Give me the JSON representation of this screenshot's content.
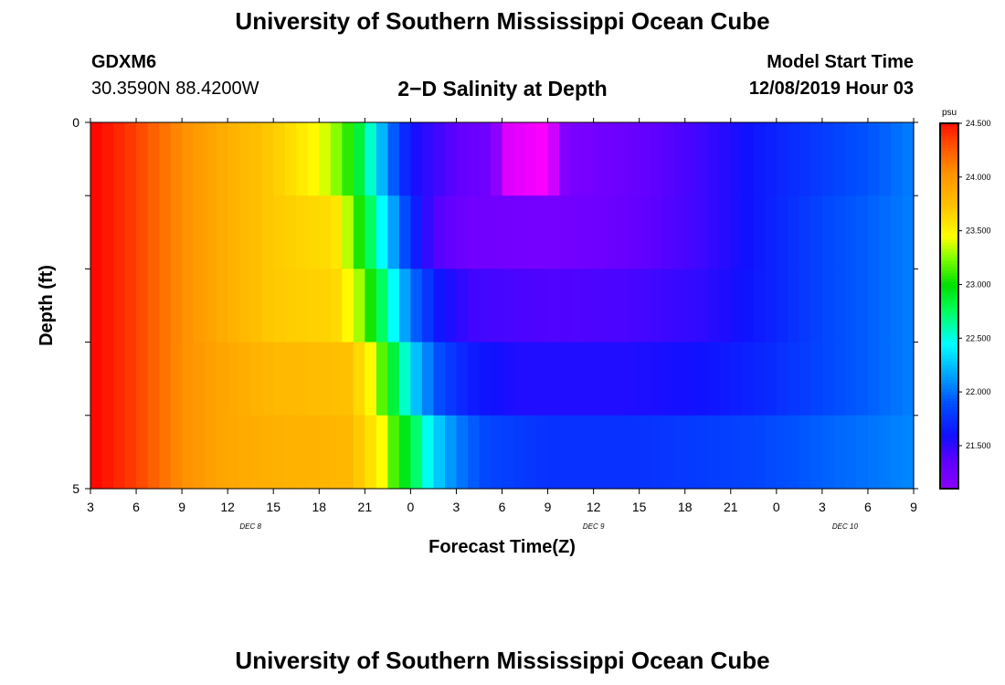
{
  "header": {
    "title": "University of Southern Mississippi Ocean Cube",
    "station": "GDXM6",
    "coordinates": "30.3590N 88.4200W",
    "subtitle": "2−D Salinity at Depth",
    "model_start_label": "Model Start Time",
    "model_start_value": "12/08/2019 Hour 03",
    "footer_title": "University of Southern Mississippi Ocean Cube"
  },
  "chart_data": {
    "type": "heatmap",
    "title": "2−D Salinity at Depth",
    "xlabel": "Forecast Time(Z)",
    "ylabel": "Depth (ft)",
    "x_tick_labels": [
      "3",
      "6",
      "9",
      "12",
      "15",
      "18",
      "21",
      "0",
      "3",
      "6",
      "9",
      "12",
      "15",
      "18",
      "21",
      "0",
      "3",
      "6",
      "9"
    ],
    "x_hours": [
      0,
      3,
      6,
      9,
      12,
      15,
      18,
      21,
      24,
      27,
      30,
      33,
      36,
      39,
      42,
      45,
      48,
      51,
      54
    ],
    "date_labels": [
      {
        "label": "DEC 8",
        "hour": 10.5
      },
      {
        "label": "DEC 9",
        "hour": 33
      },
      {
        "label": "DEC 10",
        "hour": 49.5
      }
    ],
    "y_tick_labels": [
      "0",
      "5"
    ],
    "ylim": [
      0,
      5
    ],
    "depth_levels": [
      "0-1",
      "1-2",
      "2-3",
      "3-4",
      "4-5"
    ],
    "colorbar": {
      "unit": "psu",
      "tick_labels": [
        "24.500",
        "24.000",
        "23.500",
        "23.000",
        "22.500",
        "22.000",
        "21.500"
      ],
      "tick_values": [
        24.5,
        24.0,
        23.5,
        23.0,
        22.5,
        22.0,
        21.5
      ],
      "range": [
        21.1,
        24.5
      ]
    },
    "grid": false,
    "rows": [
      {
        "depth": "0-1",
        "points": [
          [
            0,
            24.55
          ],
          [
            3,
            24.35
          ],
          [
            6,
            24.05
          ],
          [
            9,
            23.85
          ],
          [
            12,
            23.7
          ],
          [
            15,
            23.45
          ],
          [
            16.5,
            23.2
          ],
          [
            17.5,
            22.9
          ],
          [
            18.5,
            22.5
          ],
          [
            19.5,
            22.05
          ],
          [
            21,
            21.6
          ],
          [
            24,
            21.35
          ],
          [
            26,
            21.25
          ],
          [
            27,
            21.0
          ],
          [
            30,
            20.95
          ],
          [
            31.5,
            21.2
          ],
          [
            35,
            21.28
          ],
          [
            40,
            21.45
          ],
          [
            44,
            21.65
          ],
          [
            48,
            21.8
          ],
          [
            52,
            21.95
          ],
          [
            54,
            22.05
          ]
        ]
      },
      {
        "depth": "1-2",
        "points": [
          [
            0,
            24.55
          ],
          [
            3,
            24.35
          ],
          [
            6,
            24.05
          ],
          [
            9,
            23.85
          ],
          [
            12,
            23.7
          ],
          [
            16,
            23.6
          ],
          [
            17,
            23.3
          ],
          [
            18,
            22.9
          ],
          [
            19,
            22.5
          ],
          [
            20,
            22.1
          ],
          [
            21,
            21.75
          ],
          [
            22.5,
            21.4
          ],
          [
            25,
            21.25
          ],
          [
            30,
            21.22
          ],
          [
            35,
            21.3
          ],
          [
            40,
            21.45
          ],
          [
            44,
            21.65
          ],
          [
            48,
            21.85
          ],
          [
            52,
            21.98
          ],
          [
            54,
            22.05
          ]
        ]
      },
      {
        "depth": "2-3",
        "points": [
          [
            0,
            24.55
          ],
          [
            3,
            24.35
          ],
          [
            6,
            24.05
          ],
          [
            9,
            23.85
          ],
          [
            12,
            23.7
          ],
          [
            16,
            23.65
          ],
          [
            17.5,
            23.35
          ],
          [
            18.5,
            23.0
          ],
          [
            19.5,
            22.6
          ],
          [
            20.5,
            22.2
          ],
          [
            21.5,
            21.9
          ],
          [
            23,
            21.6
          ],
          [
            25,
            21.45
          ],
          [
            30,
            21.4
          ],
          [
            35,
            21.42
          ],
          [
            40,
            21.5
          ],
          [
            44,
            21.65
          ],
          [
            48,
            21.85
          ],
          [
            52,
            21.98
          ],
          [
            54,
            22.05
          ]
        ]
      },
      {
        "depth": "3-4",
        "points": [
          [
            0,
            24.55
          ],
          [
            3,
            24.35
          ],
          [
            6,
            24.05
          ],
          [
            9,
            23.9
          ],
          [
            12,
            23.8
          ],
          [
            17,
            23.75
          ],
          [
            18.5,
            23.45
          ],
          [
            19.5,
            23.0
          ],
          [
            20.5,
            22.6
          ],
          [
            21.5,
            22.2
          ],
          [
            23,
            21.85
          ],
          [
            25,
            21.65
          ],
          [
            28,
            21.55
          ],
          [
            35,
            21.55
          ],
          [
            40,
            21.6
          ],
          [
            44,
            21.7
          ],
          [
            48,
            21.85
          ],
          [
            52,
            21.98
          ],
          [
            54,
            22.05
          ]
        ]
      },
      {
        "depth": "4-5",
        "points": [
          [
            0,
            24.55
          ],
          [
            3,
            24.35
          ],
          [
            6,
            24.05
          ],
          [
            9,
            23.9
          ],
          [
            12,
            23.85
          ],
          [
            17,
            23.8
          ],
          [
            19,
            23.5
          ],
          [
            20,
            23.1
          ],
          [
            21.5,
            22.7
          ],
          [
            22.5,
            22.35
          ],
          [
            24,
            22.05
          ],
          [
            26,
            21.85
          ],
          [
            30,
            21.75
          ],
          [
            35,
            21.75
          ],
          [
            40,
            21.8
          ],
          [
            44,
            21.85
          ],
          [
            48,
            21.95
          ],
          [
            52,
            22.03
          ],
          [
            54,
            22.08
          ]
        ]
      }
    ]
  }
}
